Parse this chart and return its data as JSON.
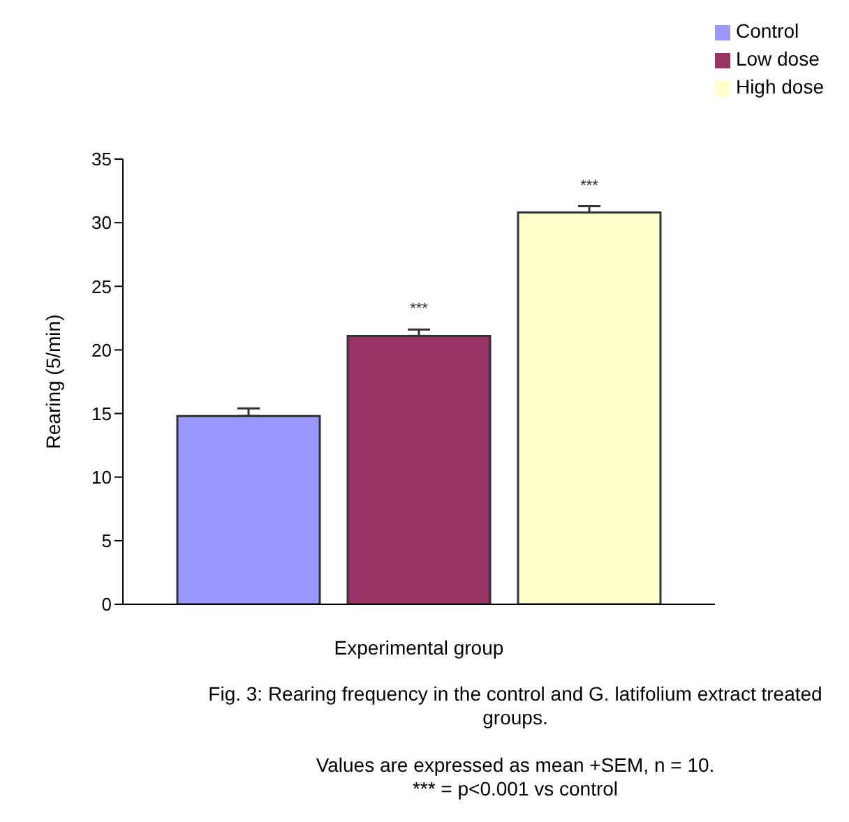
{
  "chart_data": {
    "type": "bar",
    "ylabel": "Rearing (5/min)",
    "xlabel": "Experimental group",
    "categories": [
      null
    ],
    "series": [
      {
        "name": "Control",
        "color": "#9999ff",
        "values": [
          14.8
        ],
        "errors": [
          [
            14.8,
            15.4
          ]
        ],
        "value_labels": [
          null
        ]
      },
      {
        "name": "Low dose",
        "color": "#993366",
        "values": [
          21.1
        ],
        "errors": [
          [
            21.1,
            21.6
          ]
        ],
        "value_labels": [
          "***"
        ]
      },
      {
        "name": "High dose",
        "color": "#ffffcc",
        "values": [
          30.8
        ],
        "errors": [
          [
            30.8,
            31.3
          ]
        ],
        "value_labels": [
          "***"
        ]
      }
    ],
    "ylim": [
      0,
      35
    ],
    "yticks": [
      0,
      5,
      10,
      15,
      20,
      25,
      30,
      35
    ],
    "grid": false,
    "legend": "top right",
    "annotations": [
      "Fig. 3:  Rearing frequency in the control and G. latifolium extract treated groups.",
      "Values are expressed as mean +SEM, n = 10.",
      "*** = p<0.001 vs control"
    ]
  }
}
